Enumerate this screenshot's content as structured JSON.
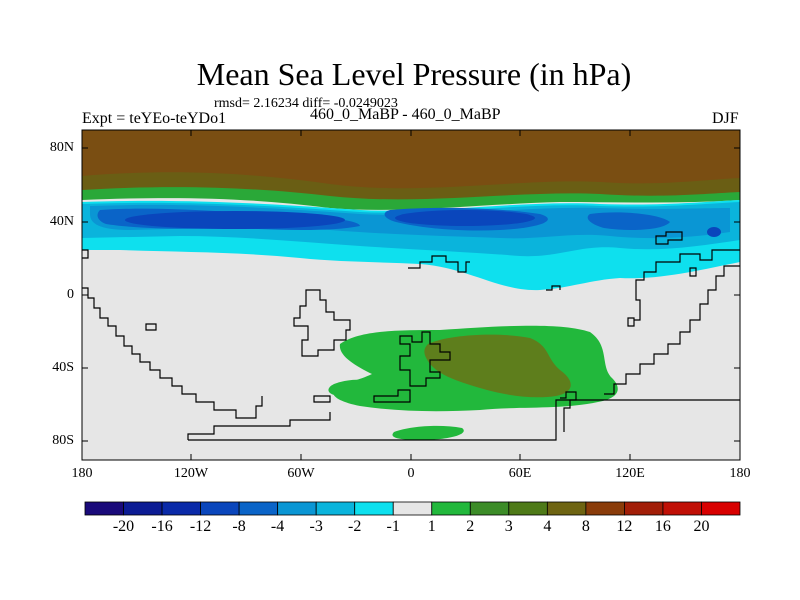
{
  "header": {
    "title": "Mean Sea Level Pressure (in hPa)",
    "stats": "rmsd= 2.16234  diff= -0.0249023",
    "experiment": "Expt = teYEo-teYDo1",
    "runs": "460_0_MaBP - 460_0_MaBP",
    "season": "DJF"
  },
  "axes": {
    "lat_ticks": [
      "80N",
      "40N",
      "0",
      "40S",
      "80S"
    ],
    "lon_ticks": [
      "180",
      "120W",
      "60W",
      "0",
      "60E",
      "120E",
      "180"
    ]
  },
  "colorbar": {
    "labels": [
      "-20",
      "-16",
      "-12",
      "-8",
      "-4",
      "-3",
      "-2",
      "-1",
      "1",
      "2",
      "3",
      "4",
      "8",
      "12",
      "16",
      "20"
    ],
    "colors": [
      "#1a0a7a",
      "#0c1c94",
      "#0a2aa8",
      "#0a46bc",
      "#0a64c8",
      "#0a96d4",
      "#0ab4dc",
      "#0ee0ee",
      "#e6e6e6",
      "#22b83c",
      "#3c8c28",
      "#4e7a18",
      "#6e6412",
      "#8a3c0a",
      "#a21e08",
      "#c01006",
      "#d80000"
    ]
  },
  "colors": {
    "background_field": "#e6e6e6",
    "coastline": "#000000"
  }
}
